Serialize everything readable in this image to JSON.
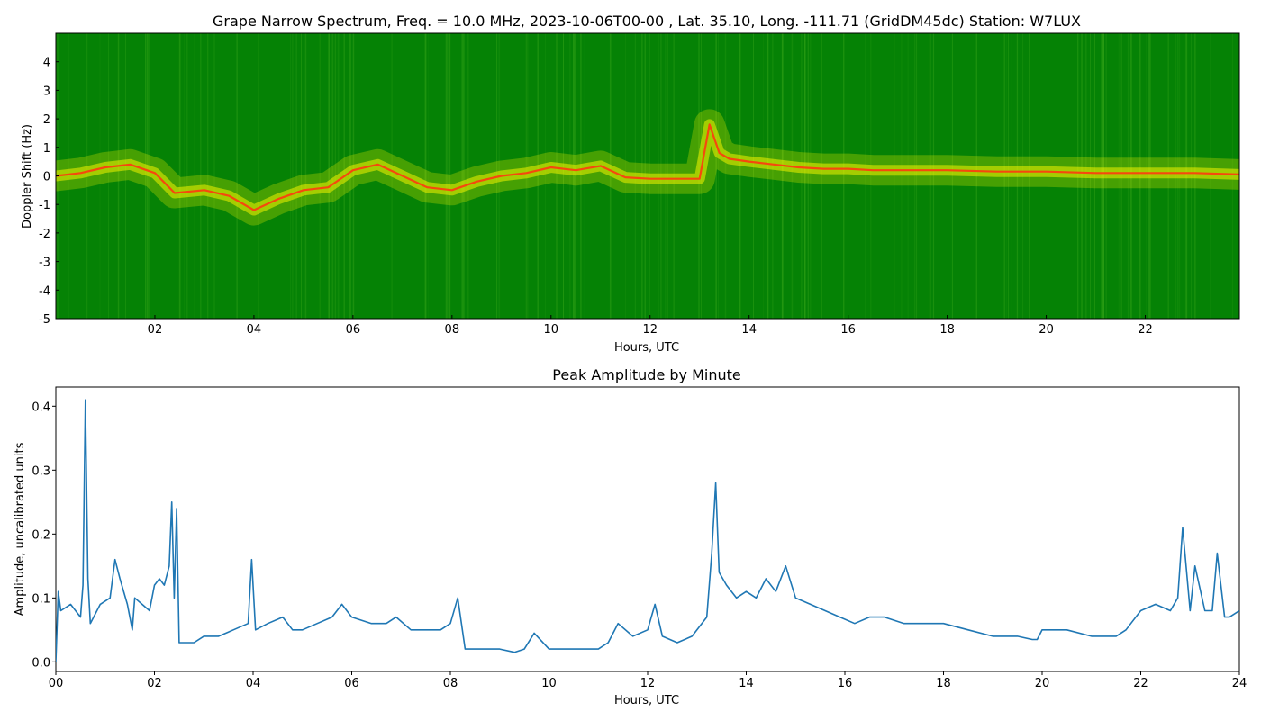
{
  "chart_data": [
    {
      "type": "heatmap",
      "title": "Grape Narrow Spectrum, Freq. = 10.0 MHz, 2023-10-06T00-00 , Lat.  35.10, Long. -111.71 (GridDM45dc) Station: W7LUX",
      "xlabel": "Hours, UTC",
      "ylabel": "Doppler Shift (Hz)",
      "xlim": [
        0,
        23.9
      ],
      "ylim": [
        -5,
        5
      ],
      "x_ticks": [
        "02",
        "04",
        "06",
        "08",
        "10",
        "12",
        "14",
        "16",
        "18",
        "20",
        "22"
      ],
      "y_ticks": [
        "-5",
        "-4",
        "-3",
        "-2",
        "-1",
        "0",
        "1",
        "2",
        "3",
        "4"
      ],
      "colormap": {
        "background": "#058205",
        "mid": "#f2f200",
        "peak": "#ff3a10"
      },
      "doppler_trace": {
        "x": [
          0,
          0.5,
          1,
          1.5,
          2,
          2.4,
          3,
          3.5,
          4,
          4.5,
          5,
          5.5,
          6,
          6.5,
          7,
          7.5,
          8,
          8.5,
          9,
          9.5,
          10,
          10.5,
          11,
          11.5,
          12,
          12.5,
          13,
          13.2,
          13.4,
          13.6,
          14,
          14.5,
          15,
          15.5,
          16,
          16.5,
          17,
          18,
          19,
          20,
          21,
          22,
          23,
          23.9
        ],
        "y": [
          0,
          0.1,
          0.3,
          0.4,
          0.1,
          -0.6,
          -0.5,
          -0.7,
          -1.2,
          -0.8,
          -0.5,
          -0.4,
          0.2,
          0.4,
          0.0,
          -0.4,
          -0.5,
          -0.2,
          0.0,
          0.1,
          0.3,
          0.2,
          0.35,
          -0.05,
          -0.1,
          -0.1,
          -0.1,
          1.8,
          0.8,
          0.6,
          0.5,
          0.4,
          0.3,
          0.25,
          0.25,
          0.2,
          0.2,
          0.2,
          0.15,
          0.15,
          0.1,
          0.1,
          0.1,
          0.05
        ]
      }
    },
    {
      "type": "line",
      "title": "Peak Amplitude by Minute",
      "xlabel": "Hours, UTC",
      "ylabel": "Amplitude, uncalibrated units",
      "xlim": [
        0,
        24
      ],
      "ylim": [
        -0.015,
        0.43
      ],
      "x_ticks": [
        "00",
        "02",
        "04",
        "06",
        "08",
        "10",
        "12",
        "14",
        "16",
        "18",
        "20",
        "22",
        "24"
      ],
      "y_ticks": [
        "0.0",
        "0.1",
        "0.2",
        "0.3",
        "0.4"
      ],
      "line_color": "#1f77b4",
      "x": [
        0,
        0.05,
        0.1,
        0.3,
        0.5,
        0.55,
        0.6,
        0.65,
        0.7,
        0.9,
        1.1,
        1.2,
        1.3,
        1.45,
        1.55,
        1.6,
        1.75,
        1.9,
        2.0,
        2.1,
        2.2,
        2.3,
        2.35,
        2.4,
        2.45,
        2.5,
        2.6,
        2.8,
        3.0,
        3.3,
        3.6,
        3.9,
        3.97,
        4.05,
        4.3,
        4.6,
        4.8,
        5.0,
        5.3,
        5.6,
        5.8,
        6.0,
        6.4,
        6.7,
        6.9,
        7.2,
        7.5,
        7.8,
        8.0,
        8.15,
        8.3,
        8.6,
        9.0,
        9.3,
        9.5,
        9.7,
        10.0,
        10.5,
        11.0,
        11.2,
        11.4,
        11.7,
        12.0,
        12.15,
        12.3,
        12.6,
        12.9,
        13.2,
        13.3,
        13.38,
        13.45,
        13.6,
        13.8,
        14.0,
        14.2,
        14.4,
        14.6,
        14.8,
        15.0,
        15.3,
        15.6,
        15.9,
        16.2,
        16.5,
        16.8,
        17.2,
        17.6,
        18.0,
        18.5,
        19.0,
        19.5,
        19.8,
        19.9,
        20.0,
        20.5,
        21.0,
        21.5,
        21.7,
        21.8,
        22.0,
        22.3,
        22.6,
        22.75,
        22.85,
        23.0,
        23.1,
        23.3,
        23.45,
        23.55,
        23.7,
        23.8,
        24.0
      ],
      "y": [
        0.0,
        0.11,
        0.08,
        0.09,
        0.07,
        0.12,
        0.41,
        0.13,
        0.06,
        0.09,
        0.1,
        0.16,
        0.13,
        0.09,
        0.05,
        0.1,
        0.09,
        0.08,
        0.12,
        0.13,
        0.12,
        0.15,
        0.25,
        0.1,
        0.24,
        0.03,
        0.03,
        0.03,
        0.04,
        0.04,
        0.05,
        0.06,
        0.16,
        0.05,
        0.06,
        0.07,
        0.05,
        0.05,
        0.06,
        0.07,
        0.09,
        0.07,
        0.06,
        0.06,
        0.07,
        0.05,
        0.05,
        0.05,
        0.06,
        0.1,
        0.02,
        0.02,
        0.02,
        0.015,
        0.02,
        0.045,
        0.02,
        0.02,
        0.02,
        0.03,
        0.06,
        0.04,
        0.05,
        0.09,
        0.04,
        0.03,
        0.04,
        0.07,
        0.17,
        0.28,
        0.14,
        0.12,
        0.1,
        0.11,
        0.1,
        0.13,
        0.11,
        0.15,
        0.1,
        0.09,
        0.08,
        0.07,
        0.06,
        0.07,
        0.07,
        0.06,
        0.06,
        0.06,
        0.05,
        0.04,
        0.04,
        0.035,
        0.035,
        0.05,
        0.05,
        0.04,
        0.04,
        0.05,
        0.06,
        0.08,
        0.09,
        0.08,
        0.1,
        0.21,
        0.08,
        0.15,
        0.08,
        0.08,
        0.17,
        0.07,
        0.07,
        0.08
      ]
    }
  ]
}
